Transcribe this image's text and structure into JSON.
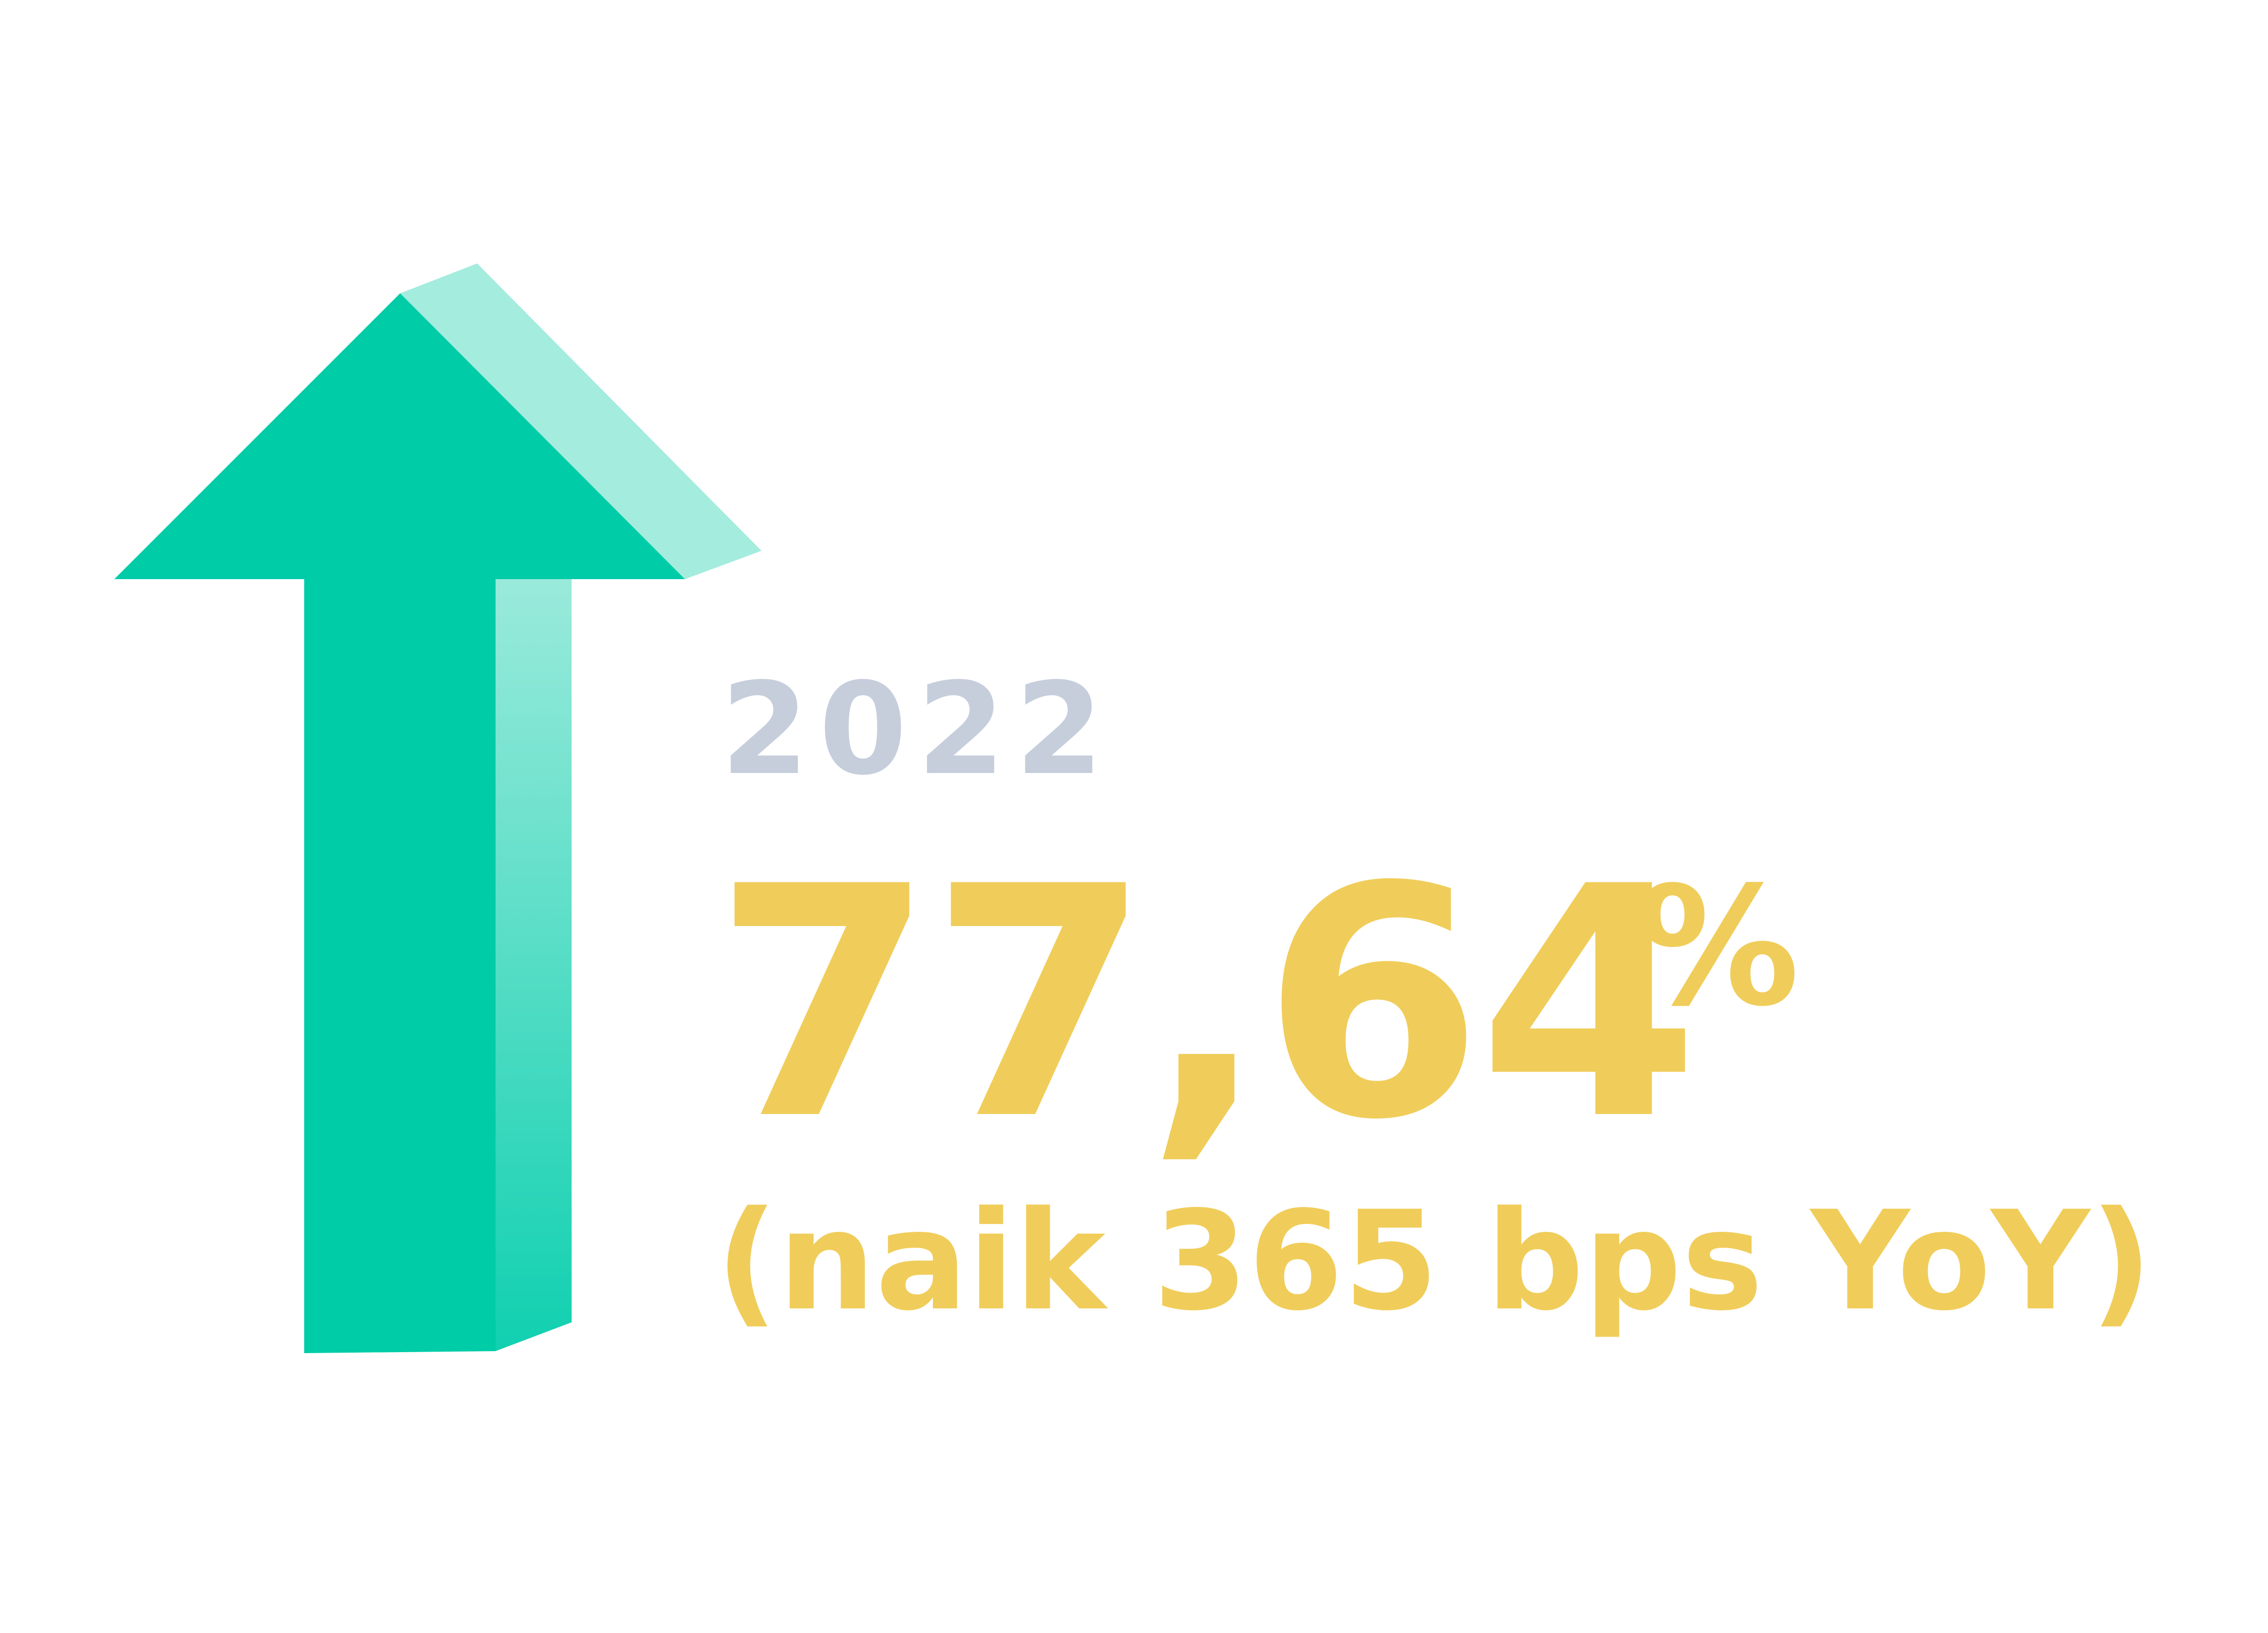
{
  "stat": {
    "year": "2022",
    "value": "77,64",
    "unit": "%",
    "change": "(naik 365 bps YoY)"
  },
  "colors": {
    "arrow_face": "#00cca8",
    "arrow_top_bevel": "#a3ecde",
    "arrow_side_top": "#9aeadb",
    "arrow_side_bottom": "#10d0b0",
    "year_text": "#c6cedc",
    "value_text": "#f0cd5a",
    "background": "#ffffff"
  },
  "icons": {
    "arrow": "up-arrow-icon"
  }
}
